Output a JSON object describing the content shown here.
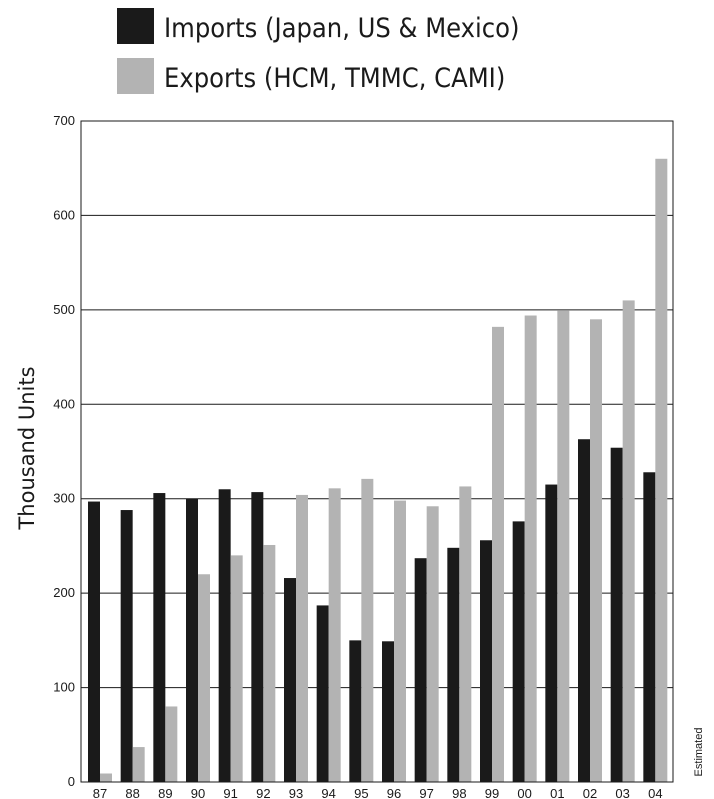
{
  "chart_data": {
    "type": "bar",
    "title": "",
    "xlabel": "",
    "ylabel": "Thousand Units",
    "ylim": [
      0,
      700
    ],
    "yticks": [
      "0",
      "100",
      "200",
      "300",
      "400",
      "500",
      "600",
      "700"
    ],
    "grid": true,
    "legend_position": "top",
    "categories": [
      "87",
      "88",
      "89",
      "90",
      "91",
      "92",
      "93",
      "94",
      "95",
      "96",
      "97",
      "98",
      "99",
      "00",
      "01",
      "02",
      "03",
      "04"
    ],
    "series": [
      {
        "name": "Imports (Japan, US & Mexico)",
        "color": "#1a1a1a",
        "values": [
          297,
          288,
          306,
          300,
          310,
          307,
          216,
          187,
          150,
          149,
          237,
          248,
          256,
          276,
          315,
          363,
          354,
          328
        ]
      },
      {
        "name": "Exports (HCM, TMMC, CAMI)",
        "color": "#b3b3b3",
        "values": [
          9,
          37,
          80,
          220,
          240,
          251,
          304,
          311,
          321,
          298,
          292,
          313,
          482,
          494,
          499,
          490,
          510,
          660
        ]
      }
    ],
    "annotation": "Estimated"
  }
}
